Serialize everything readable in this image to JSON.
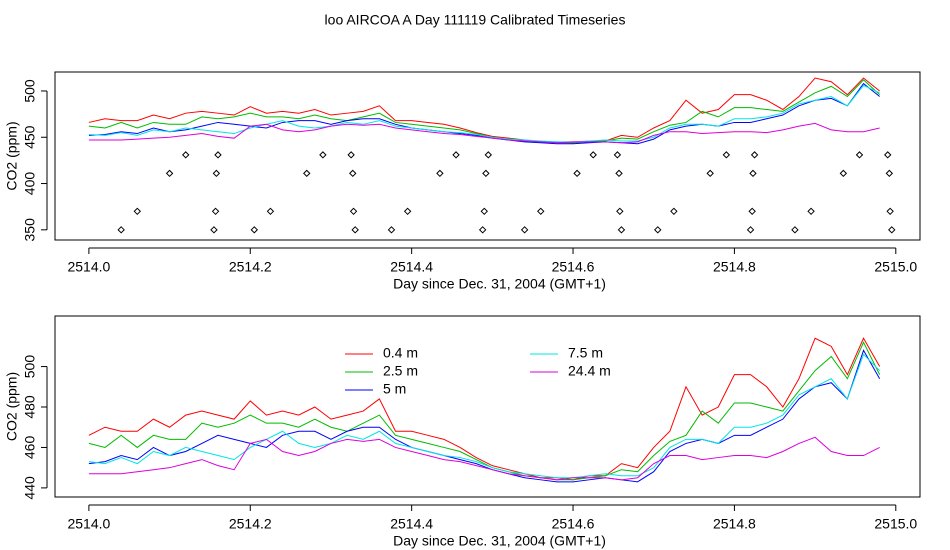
{
  "chart_data": [
    {
      "type": "line",
      "title": "loo AIRCOA A  Day 111119  Calibrated Timeseries",
      "xlabel": "Day since Dec. 31, 2004 (GMT+1)",
      "ylabel": "CO2 (ppm)",
      "xlim": [
        2513.958,
        2515.03
      ],
      "ylim": [
        339,
        520.5
      ],
      "xticks": [
        {
          "value": 2514,
          "label": "2514.0"
        },
        2514.2,
        2514.4,
        2514.6,
        2514.8,
        {
          "value": 2515,
          "label": "2515.0"
        }
      ],
      "yticks": [
        350,
        400,
        450,
        500
      ],
      "x": [
        2514.0,
        2514.02,
        2514.04,
        2514.06,
        2514.08,
        2514.1,
        2514.12,
        2514.14,
        2514.16,
        2514.18,
        2514.2,
        2514.22,
        2514.24,
        2514.26,
        2514.28,
        2514.3,
        2514.32,
        2514.34,
        2514.36,
        2514.38,
        2514.4,
        2514.42,
        2514.44,
        2514.46,
        2514.48,
        2514.5,
        2514.52,
        2514.54,
        2514.56,
        2514.58,
        2514.6,
        2514.62,
        2514.64,
        2514.66,
        2514.68,
        2514.7,
        2514.72,
        2514.74,
        2514.76,
        2514.78,
        2514.8,
        2514.82,
        2514.84,
        2514.86,
        2514.88,
        2514.9,
        2514.92,
        2514.94,
        2514.96,
        2514.98
      ],
      "series": [
        {
          "name": "0.4 m",
          "color": "#ff0000",
          "values": [
            466,
            470,
            468,
            468,
            474,
            470,
            476,
            478,
            476,
            474,
            483,
            476,
            478,
            476,
            480,
            474,
            476,
            478,
            484,
            468,
            468,
            466,
            464,
            460,
            455,
            451,
            449,
            447,
            445,
            445,
            444,
            446,
            446,
            452,
            450,
            460,
            468,
            490,
            476,
            480,
            496,
            496,
            490,
            480,
            494,
            514,
            510,
            496,
            514,
            500
          ]
        },
        {
          "name": "2.5 m",
          "color": "#00bb00",
          "values": [
            462,
            460,
            466,
            460,
            466,
            464,
            464,
            472,
            470,
            472,
            476,
            472,
            472,
            470,
            474,
            470,
            468,
            472,
            476,
            466,
            464,
            462,
            460,
            458,
            454,
            450,
            448,
            446,
            445,
            444,
            444,
            445,
            446,
            449,
            448,
            456,
            463,
            466,
            478,
            472,
            482,
            482,
            480,
            478,
            488,
            498,
            505,
            494,
            512,
            496
          ]
        },
        {
          "name": "5 m",
          "color": "#0000ff",
          "values": [
            452,
            453,
            456,
            454,
            460,
            456,
            458,
            462,
            466,
            464,
            462,
            460,
            466,
            468,
            468,
            464,
            468,
            470,
            470,
            464,
            460,
            458,
            456,
            454,
            452,
            449,
            447,
            445,
            444,
            443,
            443,
            444,
            445,
            444,
            443,
            448,
            458,
            462,
            464,
            462,
            466,
            466,
            470,
            474,
            484,
            490,
            492,
            484,
            508,
            494
          ]
        },
        {
          "name": "7.5 m",
          "color": "#00e5e5",
          "values": [
            453,
            452,
            455,
            452,
            458,
            456,
            460,
            458,
            456,
            454,
            460,
            464,
            468,
            462,
            460,
            462,
            466,
            464,
            468,
            462,
            460,
            458,
            456,
            455,
            453,
            450,
            448,
            447,
            446,
            445,
            445,
            446,
            447,
            446,
            446,
            450,
            460,
            464,
            464,
            462,
            470,
            470,
            472,
            476,
            486,
            490,
            494,
            484,
            506,
            498
          ]
        },
        {
          "name": "24.4 m",
          "color": "#dd00dd",
          "values": [
            447,
            447,
            447,
            448,
            449,
            450,
            452,
            454,
            451,
            449,
            462,
            464,
            458,
            456,
            458,
            462,
            464,
            463,
            464,
            460,
            458,
            456,
            454,
            453,
            451,
            449,
            447,
            446,
            445,
            444,
            445,
            445,
            445,
            444,
            445,
            452,
            456,
            456,
            454,
            455,
            456,
            456,
            455,
            458,
            462,
            465,
            458,
            456,
            456,
            460
          ]
        }
      ],
      "points": {
        "color": "#000000",
        "x": [
          2514.04,
          2514.06,
          2514.1,
          2514.12,
          2514.155,
          2514.157,
          2514.158,
          2514.16,
          2514.205,
          2514.225,
          2514.27,
          2514.29,
          2514.325,
          2514.327,
          2514.328,
          2514.33,
          2514.375,
          2514.395,
          2514.435,
          2514.455,
          2514.488,
          2514.49,
          2514.492,
          2514.495,
          2514.54,
          2514.56,
          2514.605,
          2514.625,
          2514.655,
          2514.657,
          2514.658,
          2514.66,
          2514.705,
          2514.725,
          2514.77,
          2514.79,
          2514.82,
          2514.822,
          2514.823,
          2514.825,
          2514.875,
          2514.895,
          2514.935,
          2514.955,
          2514.99,
          2514.992,
          2514.993,
          2514.995
        ],
        "y": [
          350,
          370,
          411,
          431,
          350,
          370,
          411,
          431,
          350,
          370,
          411,
          431,
          431,
          411,
          370,
          350,
          350,
          370,
          411,
          431,
          350,
          370,
          411,
          431,
          350,
          370,
          411,
          431,
          431,
          411,
          370,
          350,
          350,
          370,
          411,
          431,
          350,
          370,
          411,
          431,
          350,
          370,
          411,
          431,
          431,
          411,
          370,
          350
        ]
      }
    },
    {
      "type": "line",
      "xlabel": "Day since Dec. 31, 2004 (GMT+1)",
      "ylabel": "CO2 (ppm)",
      "xlim": [
        2513.958,
        2515.03
      ],
      "ylim": [
        435.5,
        525
      ],
      "xticks": [
        {
          "value": 2514,
          "label": "2514.0"
        },
        2514.2,
        2514.4,
        2514.6,
        2514.8,
        {
          "value": 2515,
          "label": "2515.0"
        }
      ],
      "yticks": [
        440,
        460,
        480,
        500
      ],
      "legend": "top",
      "x": [
        2514.0,
        2514.02,
        2514.04,
        2514.06,
        2514.08,
        2514.1,
        2514.12,
        2514.14,
        2514.16,
        2514.18,
        2514.2,
        2514.22,
        2514.24,
        2514.26,
        2514.28,
        2514.3,
        2514.32,
        2514.34,
        2514.36,
        2514.38,
        2514.4,
        2514.42,
        2514.44,
        2514.46,
        2514.48,
        2514.5,
        2514.52,
        2514.54,
        2514.56,
        2514.58,
        2514.6,
        2514.62,
        2514.64,
        2514.66,
        2514.68,
        2514.7,
        2514.72,
        2514.74,
        2514.76,
        2514.78,
        2514.8,
        2514.82,
        2514.84,
        2514.86,
        2514.88,
        2514.9,
        2514.92,
        2514.94,
        2514.96,
        2514.98
      ],
      "series": [
        {
          "name": "0.4 m",
          "color": "#ff0000",
          "values": [
            466,
            470,
            468,
            468,
            474,
            470,
            476,
            478,
            476,
            474,
            483,
            476,
            478,
            476,
            480,
            474,
            476,
            478,
            484,
            468,
            468,
            466,
            464,
            460,
            455,
            451,
            449,
            447,
            445,
            445,
            444,
            446,
            446,
            452,
            450,
            460,
            468,
            490,
            476,
            480,
            496,
            496,
            490,
            480,
            494,
            514,
            510,
            496,
            514,
            500
          ]
        },
        {
          "name": "2.5 m",
          "color": "#00bb00",
          "values": [
            462,
            460,
            466,
            460,
            466,
            464,
            464,
            472,
            470,
            472,
            476,
            472,
            472,
            470,
            474,
            470,
            468,
            472,
            476,
            466,
            464,
            462,
            460,
            458,
            454,
            450,
            448,
            446,
            445,
            444,
            444,
            445,
            446,
            449,
            448,
            456,
            463,
            466,
            478,
            472,
            482,
            482,
            480,
            478,
            488,
            498,
            505,
            494,
            512,
            496
          ]
        },
        {
          "name": "5 m",
          "color": "#0000ff",
          "values": [
            452,
            453,
            456,
            454,
            460,
            456,
            458,
            462,
            466,
            464,
            462,
            460,
            466,
            468,
            468,
            464,
            468,
            470,
            470,
            464,
            460,
            458,
            456,
            454,
            452,
            449,
            447,
            445,
            444,
            443,
            443,
            444,
            445,
            444,
            443,
            448,
            458,
            462,
            464,
            462,
            466,
            466,
            470,
            474,
            484,
            490,
            492,
            484,
            508,
            494
          ]
        },
        {
          "name": "7.5 m",
          "color": "#00e5e5",
          "values": [
            453,
            452,
            455,
            452,
            458,
            456,
            460,
            458,
            456,
            454,
            460,
            464,
            468,
            462,
            460,
            462,
            466,
            464,
            468,
            462,
            460,
            458,
            456,
            455,
            453,
            450,
            448,
            447,
            446,
            445,
            445,
            446,
            447,
            446,
            446,
            450,
            460,
            464,
            464,
            462,
            470,
            470,
            472,
            476,
            486,
            490,
            494,
            484,
            506,
            498
          ]
        },
        {
          "name": "24.4 m",
          "color": "#dd00dd",
          "values": [
            447,
            447,
            447,
            448,
            449,
            450,
            452,
            454,
            451,
            449,
            462,
            464,
            458,
            456,
            458,
            462,
            464,
            463,
            464,
            460,
            458,
            456,
            454,
            453,
            451,
            449,
            447,
            446,
            445,
            444,
            445,
            445,
            445,
            444,
            445,
            452,
            456,
            456,
            454,
            455,
            456,
            456,
            455,
            458,
            462,
            465,
            458,
            456,
            456,
            460
          ]
        }
      ]
    }
  ]
}
